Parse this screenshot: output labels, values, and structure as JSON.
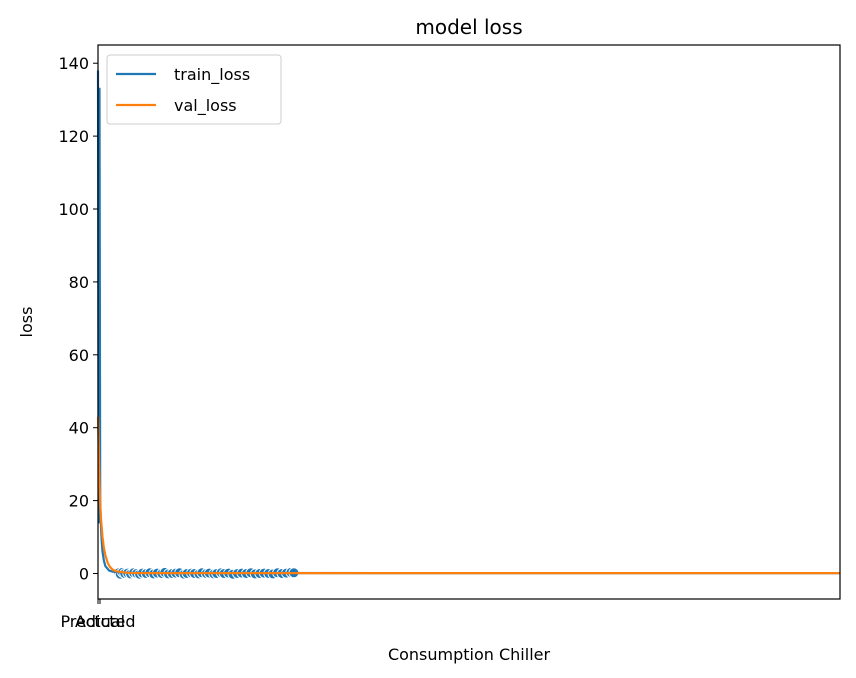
{
  "chart_data": {
    "type": "line",
    "title": "model loss",
    "xlabel": "Consumption Chiller",
    "ylabel": "loss",
    "xlim": [
      0,
      1000
    ],
    "ylim": [
      -7,
      145
    ],
    "yticks": [
      0,
      20,
      40,
      60,
      80,
      100,
      120,
      140
    ],
    "xtick_labels": [
      "Predicted",
      "Actual"
    ],
    "grid": false,
    "legend_position": "top-left",
    "series": [
      {
        "name": "train_loss",
        "color": "#1f77b4",
        "x": [
          0,
          1,
          2,
          3,
          4,
          5,
          6,
          8,
          10,
          15,
          20,
          30,
          50,
          100,
          200,
          400,
          700,
          999
        ],
        "y": [
          138,
          14,
          133,
          20,
          13,
          9,
          6,
          3.5,
          2,
          0.8,
          0.5,
          0.3,
          0.2,
          0.15,
          0.12,
          0.1,
          0.1,
          0.1
        ]
      },
      {
        "name": "val_loss",
        "color": "#ff7f0e",
        "x": [
          0,
          1,
          2,
          3,
          4,
          6,
          8,
          10,
          13,
          16,
          20,
          25,
          30,
          40,
          60,
          100,
          300,
          600,
          999
        ],
        "y": [
          43,
          35,
          25,
          19,
          15,
          10,
          7,
          5,
          3,
          1.8,
          1,
          0.6,
          0.4,
          0.2,
          0.1,
          0.1,
          0.1,
          0.1,
          0.1
        ]
      }
    ],
    "scatter": {
      "color": "#1f77b4",
      "x": [
        28,
        30,
        33,
        36,
        40,
        44,
        48,
        52,
        56,
        60,
        65,
        70,
        75,
        80,
        86,
        90,
        95,
        100,
        105,
        110,
        116,
        120,
        126,
        130,
        136,
        140,
        146,
        150,
        156,
        160,
        166,
        170,
        176,
        182,
        188,
        194,
        200,
        206,
        212,
        218,
        224,
        230,
        236,
        242,
        248,
        254,
        260,
        264
      ],
      "y": [
        0.2,
        -0.2,
        0.3,
        0,
        0.1,
        -0.1,
        0.2,
        0,
        -0.2,
        0.1,
        0,
        0.2,
        -0.1,
        0.1,
        0,
        0.3,
        -0.1,
        0,
        0.1,
        0.2,
        -0.2,
        0,
        0.1,
        0,
        -0.1,
        0.2,
        0,
        0.1,
        -0.1,
        0,
        0.2,
        0,
        0.1,
        -0.2,
        0,
        0.1,
        0,
        0.2,
        -0.1,
        0,
        0.1,
        0,
        -0.1,
        0.2,
        0,
        0.1,
        0.3,
        0.2
      ]
    }
  }
}
